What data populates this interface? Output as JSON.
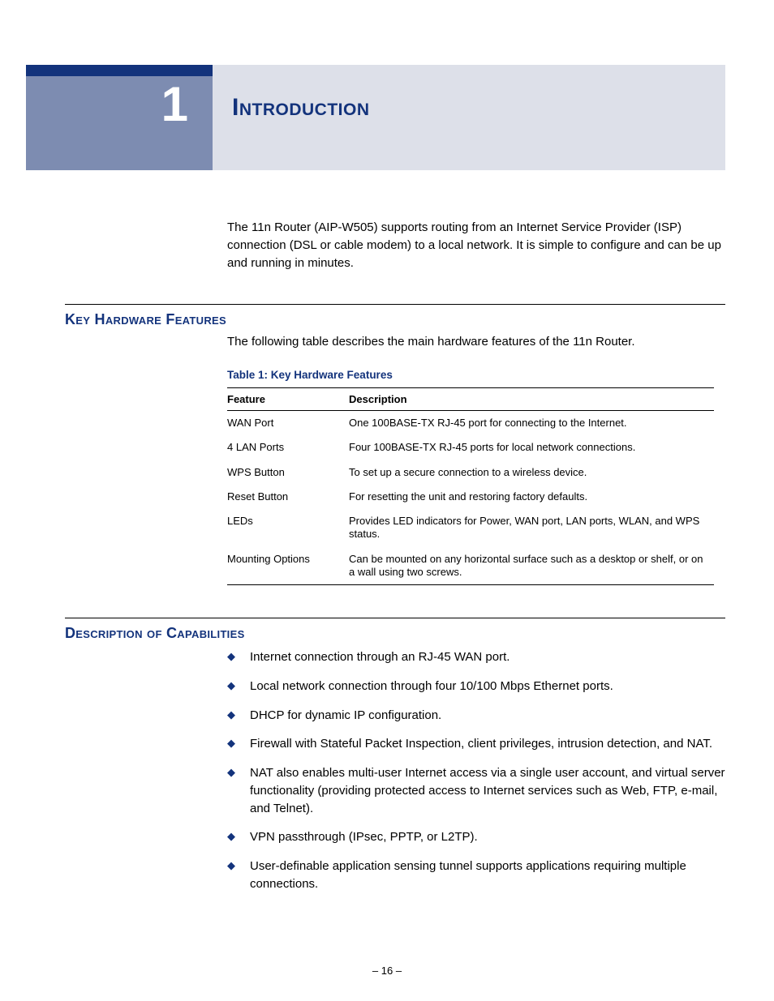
{
  "colors": {
    "accent_navy": "#13337c",
    "header_band_bg": "#dde0e9",
    "chapter_box_bg": "#7d8cb1",
    "chapter_number_color": "#ffffff",
    "body_text": "#000000",
    "background": "#ffffff",
    "bullet_color": "#13337c"
  },
  "typography": {
    "body_font": "Verdana",
    "body_size_pt": 11,
    "chapter_number_size_pt": 45,
    "chapter_title_size_pt": 22,
    "section_heading_size_pt": 14,
    "table_font_size_pt": 10
  },
  "chapter": {
    "number": "1",
    "title": "Introduction"
  },
  "intro_paragraph": "The 11n Router (AIP-W505) supports routing from an Internet Service Provider (ISP) connection (DSL or cable modem) to a local network. It is simple to configure and can be up and running in minutes.",
  "section_hardware": {
    "heading": "Key Hardware Features",
    "text": "The following table describes the main hardware features of the 11n Router.",
    "table": {
      "caption": "Table 1: Key Hardware Features",
      "columns": [
        "Feature",
        "Description"
      ],
      "rows": [
        [
          "WAN Port",
          "One 100BASE-TX RJ-45 port for connecting to the Internet."
        ],
        [
          "4 LAN Ports",
          "Four 100BASE-TX RJ-45 ports for local network connections."
        ],
        [
          "WPS Button",
          "To set up a secure connection to a wireless device."
        ],
        [
          "Reset Button",
          "For resetting the unit and restoring factory defaults."
        ],
        [
          "LEDs",
          "Provides LED indicators for Power, WAN port, LAN ports, WLAN, and WPS status."
        ],
        [
          "Mounting Options",
          "Can be mounted on any horizontal surface such as a desktop or shelf, or on a wall using two screws."
        ]
      ]
    }
  },
  "section_capabilities": {
    "heading": "Description of Capabilities",
    "items": [
      "Internet connection through an RJ-45 WAN port.",
      "Local network connection through four 10/100 Mbps Ethernet ports.",
      "DHCP for dynamic IP configuration.",
      "Firewall with Stateful Packet Inspection, client privileges, intrusion detection, and NAT.",
      "NAT also enables multi-user Internet access via a single user account, and virtual server functionality (providing protected access to Internet services such as Web, FTP, e-mail, and Telnet).",
      "VPN passthrough (IPsec, PPTP, or L2TP).",
      "User-definable application sensing tunnel supports applications requiring multiple connections."
    ]
  },
  "page_number": "–  16  –"
}
